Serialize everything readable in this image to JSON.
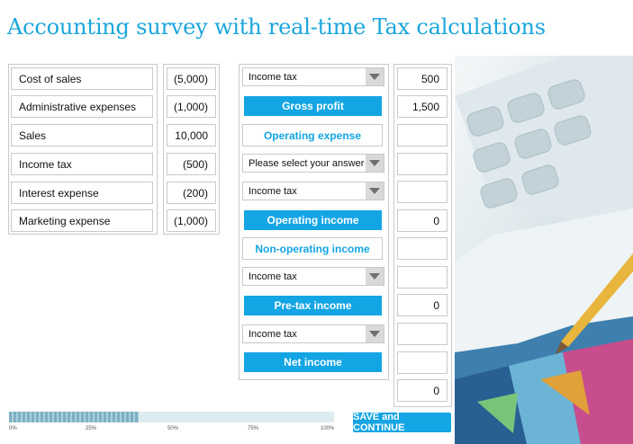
{
  "title": "Accounting survey with real-time Tax calculations",
  "items": [
    {
      "label": "Cost of sales",
      "value": "(5,000)"
    },
    {
      "label": "Administrative expenses",
      "value": "(1,000)"
    },
    {
      "label": "Sales",
      "value": "10,000"
    },
    {
      "label": "Income tax",
      "value": "(500)"
    },
    {
      "label": "Interest expense",
      "value": "(200)"
    },
    {
      "label": "Marketing expense",
      "value": "(1,000)"
    }
  ],
  "statement": {
    "row1_select": "Income tax",
    "gross_profit": "Gross profit",
    "operating_expense": "Operating expense",
    "row4_select": "Please select your answer",
    "row5_select": "Income tax",
    "operating_income": "Operating income",
    "non_operating_income": "Non-operating income",
    "row8_select": "Income tax",
    "pretax_income": "Pre-tax income",
    "row10_select": "Income tax",
    "net_income": "Net income"
  },
  "results": {
    "r1": "500",
    "r2": "1,500",
    "r3": "",
    "r4": "",
    "r5": "",
    "r6": "0",
    "r7": "",
    "r8": "",
    "r9": "0",
    "r10": "",
    "r11": "",
    "r12": "0"
  },
  "progress": {
    "fraction": 0.4,
    "ticks": [
      "0%",
      "25%",
      "50%",
      "75%",
      "100%"
    ]
  },
  "save_label": "SAVE and CONTINUE",
  "colors": {
    "accent": "#13a5e4",
    "title": "#1aa6dc"
  },
  "icons": {
    "dropdown": "chevron-down-icon"
  }
}
